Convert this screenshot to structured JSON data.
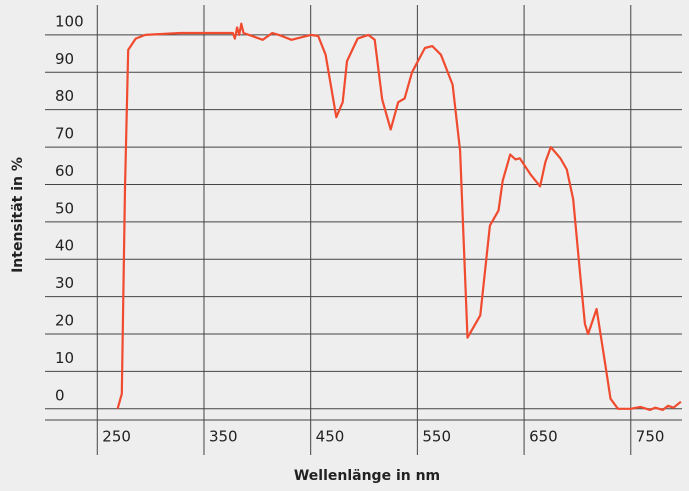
{
  "chart_data": {
    "type": "line",
    "x_label": "Wellenlänge in nm",
    "y_label": "Intensität in %",
    "x": [
      269,
      273,
      276,
      279,
      286,
      295,
      328,
      377,
      379,
      381,
      383,
      385,
      387,
      405,
      414,
      420,
      432,
      450,
      457,
      464,
      474,
      480,
      484,
      494,
      504,
      510,
      517,
      525,
      532,
      538,
      545,
      557,
      564,
      572,
      583,
      590,
      597,
      609,
      618,
      626,
      630,
      637,
      642,
      646,
      656,
      665,
      670,
      675,
      684,
      690,
      696,
      703,
      707,
      710,
      718,
      726,
      731,
      738,
      750,
      759,
      768,
      773,
      780,
      785,
      790,
      797
    ],
    "series": [
      {
        "name": "Intensität",
        "color": "#f04a2f",
        "values": [
          0,
          4,
          59,
          96,
          99,
          100,
          100.5,
          100.5,
          99,
          102,
          100,
          103,
          100.5,
          98.7,
          100.5,
          100,
          98.7,
          100,
          99.7,
          94.7,
          78,
          82,
          93,
          99,
          100,
          98.7,
          82.7,
          74.7,
          82,
          83,
          90,
          96.5,
          97,
          94.7,
          86.7,
          69,
          19,
          25,
          49,
          53,
          61,
          68,
          66.7,
          67,
          62.7,
          59.5,
          66,
          70,
          67,
          64,
          56,
          34.7,
          22.7,
          20,
          26.7,
          12,
          2.7,
          0,
          0,
          0.5,
          -0.3,
          0.3,
          -0.3,
          0.8,
          0.3,
          1.9
        ]
      }
    ],
    "xlim": [
      201,
      798
    ],
    "xticks": [
      250,
      350,
      450,
      550,
      650,
      750
    ],
    "ylim": [
      -3,
      108
    ],
    "yticks": [
      0,
      10,
      20,
      30,
      40,
      50,
      60,
      70,
      80,
      90,
      100
    ],
    "grid": true
  }
}
